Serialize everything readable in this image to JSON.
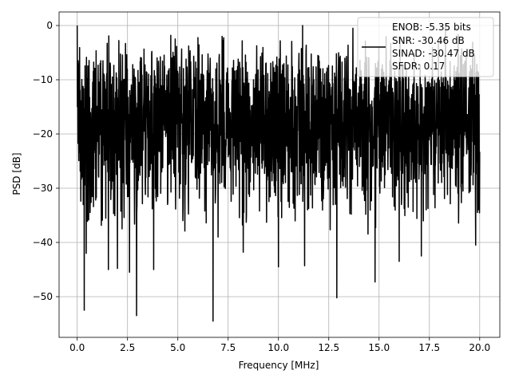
{
  "chart_data": {
    "type": "line",
    "title": "",
    "xlabel": "Frequency [MHz]",
    "ylabel": "PSD [dB]",
    "xlim": [
      -0.9,
      21.0
    ],
    "ylim": [
      -57.5,
      2.5
    ],
    "x_ticks": [
      0.0,
      2.5,
      5.0,
      7.5,
      10.0,
      12.5,
      15.0,
      17.5,
      20.0
    ],
    "x_tick_labels": [
      "0.0",
      "2.5",
      "5.0",
      "7.5",
      "10.0",
      "12.5",
      "15.0",
      "17.5",
      "20.0"
    ],
    "y_ticks": [
      0,
      -10,
      -20,
      -30,
      -40,
      -50
    ],
    "y_tick_labels": [
      "0",
      "−10",
      "−20",
      "−30",
      "−40",
      "−50"
    ],
    "grid": true,
    "legend_position": "top-right",
    "legend_lines": [
      "ENOB: -5.35 bits",
      "SNR: -30.46 dB",
      "SINAD: -30.47 dB",
      "SFDR: 0.17"
    ],
    "line_color": "#000000",
    "series": [
      {
        "x_start": 0.0,
        "x_end": 20.0,
        "point_count": 2001,
        "typical_max": -8,
        "typical_min": -28,
        "peaks": [
          {
            "x": 0.0,
            "y": 0.0
          },
          {
            "x": 0.05,
            "y": -6.5
          },
          {
            "x": 0.1,
            "y": -8.0
          },
          {
            "x": 2.4,
            "y": -3.3
          },
          {
            "x": 4.65,
            "y": -1.8
          },
          {
            "x": 7.2,
            "y": -2.0
          },
          {
            "x": 11.2,
            "y": 0.0
          },
          {
            "x": 13.7,
            "y": -0.5
          },
          {
            "x": 18.3,
            "y": -0.3
          }
        ],
        "dips": [
          {
            "x": 0.35,
            "y": -52.5
          },
          {
            "x": 0.45,
            "y": -42.0
          },
          {
            "x": 1.55,
            "y": -45.0
          },
          {
            "x": 2.0,
            "y": -44.8
          },
          {
            "x": 2.6,
            "y": -45.5
          },
          {
            "x": 2.95,
            "y": -53.5
          },
          {
            "x": 3.8,
            "y": -45.0
          },
          {
            "x": 6.75,
            "y": -54.5
          },
          {
            "x": 7.0,
            "y": -39.0
          },
          {
            "x": 8.25,
            "y": -41.8
          },
          {
            "x": 10.0,
            "y": -44.5
          },
          {
            "x": 11.3,
            "y": -44.3
          },
          {
            "x": 12.9,
            "y": -50.2
          },
          {
            "x": 14.8,
            "y": -47.3
          },
          {
            "x": 16.0,
            "y": -43.5
          },
          {
            "x": 17.1,
            "y": -42.5
          },
          {
            "x": 19.8,
            "y": -40.5
          }
        ]
      }
    ]
  }
}
